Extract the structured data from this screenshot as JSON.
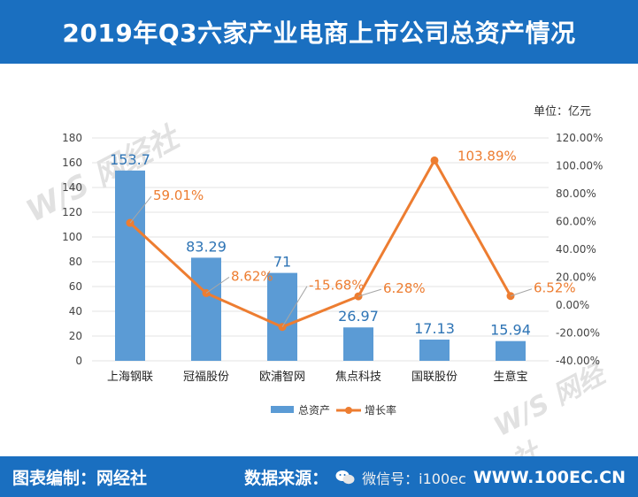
{
  "title": "2019年Q3六家产业电商上市公司总资产情况",
  "unit_label": "单位：亿元",
  "footer": {
    "left": "图表编制：网经社",
    "right_label": "数据来源：",
    "right_value": "WWW.100EC.CN"
  },
  "watermark": {
    "brand": "网经社",
    "mark": "W/S",
    "tagline": "WWW.100EC.CN"
  },
  "wechat_overlay": "微信号：i100ec",
  "chart_data": {
    "type": "bar",
    "categories": [
      "上海钢联",
      "冠福股份",
      "欧浦智网",
      "焦点科技",
      "国联股份",
      "生意宝"
    ],
    "series": [
      {
        "name": "总资产",
        "type": "bar",
        "axis": "left",
        "color": "#5b9bd5",
        "values": [
          153.7,
          83.29,
          71,
          26.97,
          17.13,
          15.94
        ],
        "labels": [
          "153.7",
          "83.29",
          "71",
          "26.97",
          "17.13",
          "15.94"
        ]
      },
      {
        "name": "增长率",
        "type": "line",
        "axis": "right",
        "color": "#ed7d31",
        "values": [
          59.01,
          8.62,
          -15.68,
          6.28,
          103.89,
          6.52
        ],
        "labels": [
          "59.01%",
          "8.62%",
          "-15.68%",
          "6.28%",
          "103.89%",
          "6.52%"
        ]
      }
    ],
    "y_left": {
      "min": 0,
      "max": 180,
      "step": 20,
      "ticks": [
        "0",
        "20",
        "40",
        "60",
        "80",
        "100",
        "120",
        "140",
        "160",
        "180"
      ]
    },
    "y_right": {
      "min": -40,
      "max": 120,
      "step": 20,
      "ticks": [
        "-40.00%",
        "-20.00%",
        "0.00%",
        "20.00%",
        "40.00%",
        "60.00%",
        "80.00%",
        "100.00%",
        "120.00%"
      ]
    },
    "grid": true,
    "legend": "bottom"
  }
}
